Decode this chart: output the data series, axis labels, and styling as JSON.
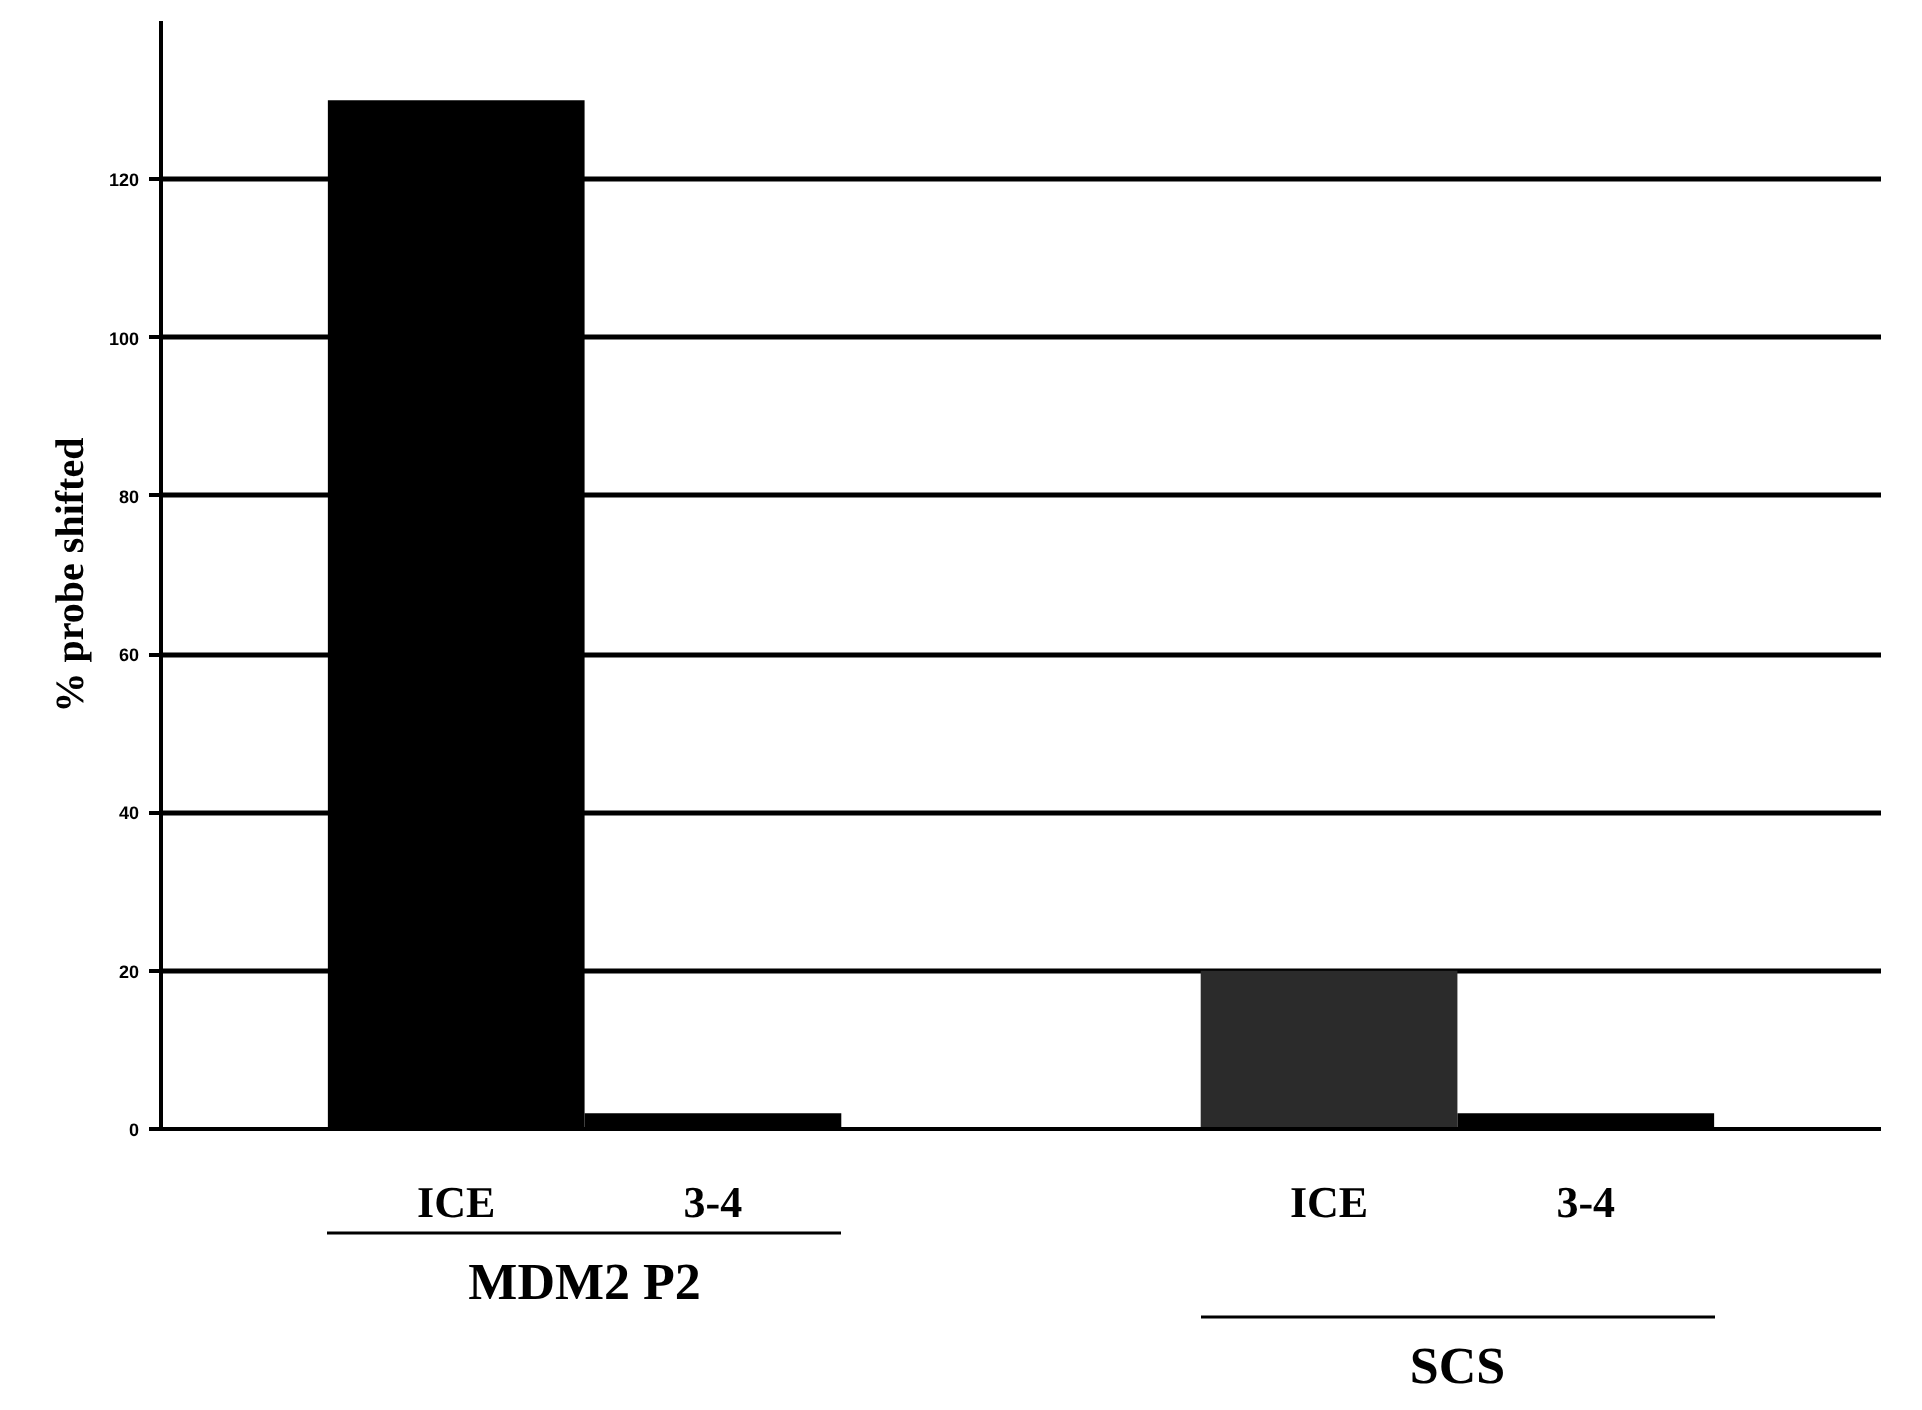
{
  "chart_data": {
    "type": "bar",
    "ylabel": "% probe shifted",
    "categories": [
      "ICE",
      "3-4",
      "ICE",
      "3-4"
    ],
    "values": [
      130,
      2,
      20,
      2
    ],
    "colors": [
      "#000000",
      "#000000",
      "#2b2b2b",
      "#000000"
    ],
    "ylim": [
      0,
      140
    ],
    "yticks": [
      0,
      20,
      40,
      60,
      80,
      100,
      120
    ],
    "grid": "y",
    "annotations": [
      "MDM2 P2",
      "SCS"
    ]
  }
}
